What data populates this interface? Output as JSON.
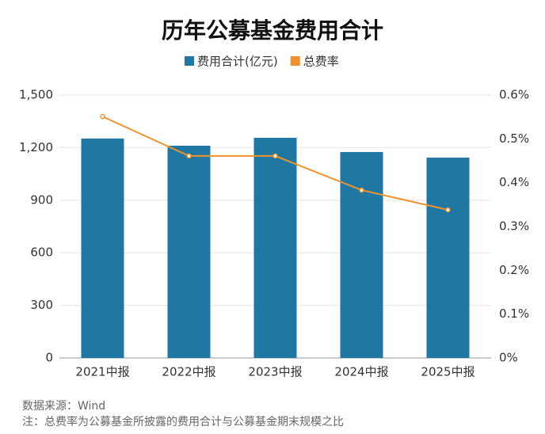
{
  "chart_data": {
    "type": "bar",
    "title": "历年公募基金费用合计",
    "categories": [
      "2021中报",
      "2022中报",
      "2023中报",
      "2024中报",
      "2025中报"
    ],
    "series": [
      {
        "name": "费用合计(亿元)",
        "color": "#1f78a4",
        "type": "bar",
        "values": [
          1252,
          1211,
          1256,
          1175,
          1143
        ]
      },
      {
        "name": "总费率",
        "color": "#f0922b",
        "type": "line",
        "axis": "y2",
        "values": [
          0.551,
          0.461,
          0.461,
          0.383,
          0.338
        ]
      }
    ],
    "ylim": [
      0,
      1500
    ],
    "yticks": [
      0,
      300,
      600,
      900,
      {
        "value": 1200,
        "label": "1,200"
      },
      {
        "value": 1500,
        "label": "1,500"
      }
    ],
    "y2lim": [
      0,
      0.6
    ],
    "y2ticks": [
      {
        "value": 0,
        "label": "0%"
      },
      {
        "value": 0.1,
        "label": "0.1%"
      },
      {
        "value": 0.2,
        "label": "0.2%"
      },
      {
        "value": 0.3,
        "label": "0.3%"
      },
      {
        "value": 0.4,
        "label": "0.4%"
      },
      {
        "value": 0.5,
        "label": "0.5%"
      },
      {
        "value": 0.6,
        "label": "0.6%"
      }
    ],
    "grid": true,
    "legend": "top",
    "source": "数据来源：Wind",
    "note": "注：总费率为公募基金所披露的费用合计与公募基金期末规模之比"
  }
}
